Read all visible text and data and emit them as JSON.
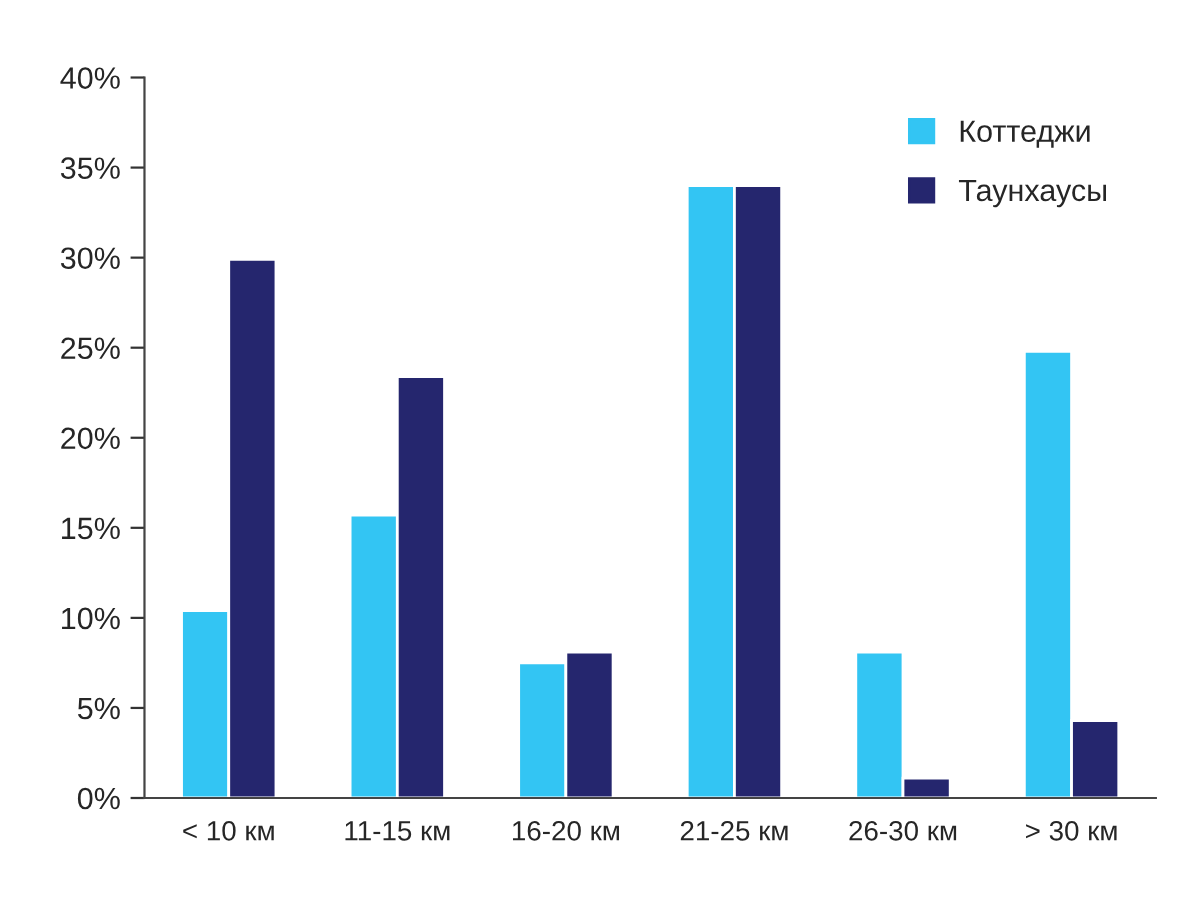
{
  "chart_data": {
    "type": "bar",
    "categories": [
      "< 10 км",
      "11-15 км",
      "16-20 км",
      "21-25 км",
      "26-30 км",
      "> 30 км"
    ],
    "series": [
      {
        "name": "Коттеджи",
        "color": "#33c5f3",
        "values": [
          10.4,
          15.7,
          7.5,
          34.0,
          8.1,
          24.8
        ]
      },
      {
        "name": "Таунхаусы",
        "color": "#25266e",
        "values": [
          29.9,
          23.4,
          8.1,
          34.0,
          1.1,
          4.3
        ]
      }
    ],
    "ylim": [
      0,
      40
    ],
    "yticks": [
      {
        "value": 0,
        "label": "0%"
      },
      {
        "value": 5,
        "label": "5%"
      },
      {
        "value": 10,
        "label": "10%"
      },
      {
        "value": 15,
        "label": "15%"
      },
      {
        "value": 20,
        "label": "20%"
      },
      {
        "value": 25,
        "label": "25%"
      },
      {
        "value": 30,
        "label": "30%"
      },
      {
        "value": 35,
        "label": "35%"
      },
      {
        "value": 40,
        "label": "40%"
      }
    ],
    "grid": false,
    "legend": "top right"
  }
}
